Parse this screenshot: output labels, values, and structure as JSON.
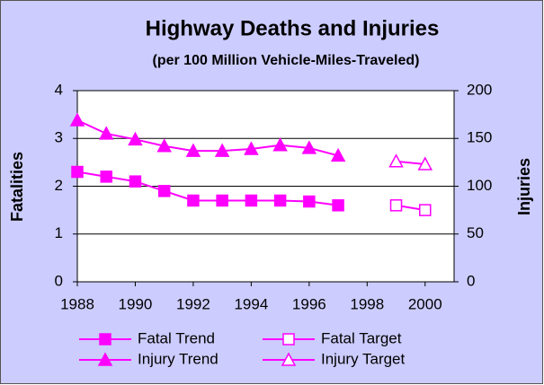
{
  "chart_data": {
    "type": "line",
    "title": "Highway Deaths and Injuries",
    "subtitle": "(per 100 Million Vehicle-Miles-Traveled)",
    "y_label": "Fatalities",
    "y2_label": "Injuries",
    "x": [
      1988,
      1989,
      1990,
      1991,
      1992,
      1993,
      1994,
      1995,
      1996,
      1997,
      1998,
      1999,
      2000
    ],
    "xlim": [
      1988,
      2001
    ],
    "xticks": [
      1988,
      1990,
      1992,
      1994,
      1996,
      1998,
      2000
    ],
    "ylim": [
      0,
      4
    ],
    "yticks": [
      0,
      1,
      2,
      3,
      4
    ],
    "y2lim": [
      0,
      200
    ],
    "y2ticks": [
      0,
      50,
      100,
      150,
      200
    ],
    "grid": true,
    "legend": "bottom",
    "series": [
      {
        "name": "Fatal Trend",
        "color": "#ff00ff",
        "marker": "square",
        "filled": true,
        "values": [
          2.3,
          2.2,
          2.1,
          1.9,
          1.7,
          1.7,
          1.7,
          1.7,
          1.68,
          1.6,
          null,
          null,
          null
        ]
      },
      {
        "name": "Fatal Target",
        "color": "#ff00ff",
        "marker": "square",
        "filled": false,
        "values": [
          null,
          null,
          null,
          null,
          null,
          null,
          null,
          null,
          null,
          null,
          null,
          1.6,
          1.5
        ]
      },
      {
        "name": "Injury Trend",
        "color": "#ff00ff",
        "marker": "triangle",
        "filled": true,
        "axis": "y2",
        "values": [
          169,
          155,
          149,
          142,
          137,
          137,
          139,
          143,
          140,
          132,
          null,
          null,
          null
        ]
      },
      {
        "name": "Injury Target",
        "color": "#ff00ff",
        "marker": "triangle",
        "filled": false,
        "axis": "y2",
        "values": [
          null,
          null,
          null,
          null,
          null,
          null,
          null,
          null,
          null,
          null,
          null,
          126,
          123
        ]
      }
    ]
  }
}
